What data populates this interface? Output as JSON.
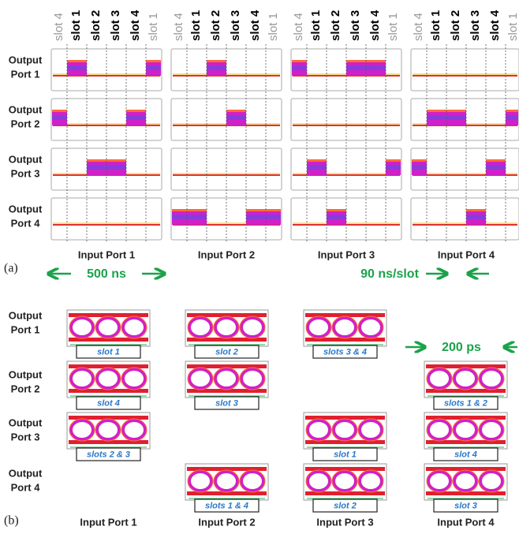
{
  "part_a": {
    "label": "(a)",
    "slot_header": [
      "slot 4",
      "slot 1",
      "slot 2",
      "slot 3",
      "slot 4",
      "slot 1"
    ],
    "output_ports": [
      [
        "Output",
        "Port 1"
      ],
      [
        "Output",
        "Port 2"
      ],
      [
        "Output",
        "Port 3"
      ],
      [
        "Output",
        "Port 4"
      ]
    ],
    "input_ports": [
      "Input Port 1",
      "Input Port 2",
      "Input Port 3",
      "Input Port 4"
    ],
    "annotations": [
      "500 ns",
      "90 ns/slot"
    ]
  },
  "part_b": {
    "label": "(b)",
    "output_ports": [
      [
        "Output",
        "Port 1"
      ],
      [
        "Output",
        "Port 2"
      ],
      [
        "Output",
        "Port 3"
      ],
      [
        "Output",
        "Port 4"
      ]
    ],
    "input_ports": [
      "Input Port 1",
      "Input Port 2",
      "Input Port 3",
      "Input Port 4"
    ],
    "annotation": "200 ps",
    "eyes": [
      [
        "slot 1",
        "slot 2",
        "slots 3 & 4",
        null
      ],
      [
        "slot 4",
        "slot 3",
        null,
        "slots 1 & 2"
      ],
      [
        "slots 2 & 3",
        null,
        "slot 1",
        "slot 4"
      ],
      [
        null,
        "slots 1 & 4",
        "slot 2",
        "slot 3"
      ]
    ]
  }
}
